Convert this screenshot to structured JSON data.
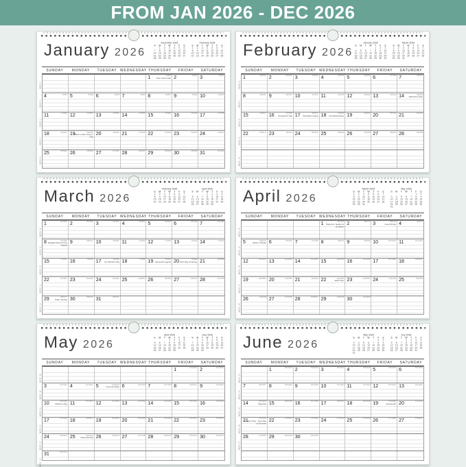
{
  "banner": {
    "text": "FROM JAN 2026 - DEC 2026",
    "bg_color": "#68a396",
    "text_color": "#ffffff"
  },
  "page_bg_color": "#e9efec",
  "weekday_headers": [
    "SUNDAY",
    "MONDAY",
    "TUESDAY",
    "WEDNESDAY",
    "THURSDAY",
    "FRIDAY",
    "SATURDAY"
  ],
  "mini_weekday_letters": [
    "S",
    "M",
    "T",
    "W",
    "T",
    "F",
    "S"
  ],
  "day_cell_corner_format": "day_of_year/days_remaining",
  "days_in_year": 365,
  "week_label_prefix": "WEEK",
  "months": [
    {
      "name": "January",
      "year": "2026",
      "first_weekday": 4,
      "days": 31,
      "start_day_of_year": 1,
      "first_week": 1,
      "mini_prev": {
        "label": "December 2025",
        "first_weekday": 1,
        "days": 31
      },
      "mini_next": {
        "label": "February 2026",
        "first_weekday": 0,
        "days": 28
      },
      "holidays": {
        "1": "New Year's Day",
        "19": "Martin Luther King Jr. Day"
      }
    },
    {
      "name": "February",
      "year": "2026",
      "first_weekday": 0,
      "days": 28,
      "start_day_of_year": 32,
      "first_week": 6,
      "min_rows": 5,
      "mini_prev": {
        "label": "January 2026",
        "first_weekday": 4,
        "days": 31
      },
      "mini_next": {
        "label": "March 2026",
        "first_weekday": 0,
        "days": 31
      },
      "holidays": {
        "14": "Valentine's Day",
        "16": "Presidents' Day",
        "17": "Ramadan begins",
        "18": "Ash Wednesday"
      }
    },
    {
      "name": "March",
      "year": "2026",
      "first_weekday": 0,
      "days": 31,
      "start_day_of_year": 60,
      "first_week": 10,
      "mini_prev": {
        "label": "February 2026",
        "first_weekday": 0,
        "days": 28
      },
      "mini_next": {
        "label": "April 2026",
        "first_weekday": 3,
        "days": 30
      },
      "holidays": {
        "8": "Daylight Saving Time begins",
        "17": "St. Patrick's Day",
        "19": "Eid al-Fitr begins",
        "20": "First Day of Spring",
        "29": "Palm Sunday"
      }
    },
    {
      "name": "April",
      "year": "2026",
      "first_weekday": 3,
      "days": 30,
      "start_day_of_year": 91,
      "first_week": 14,
      "mini_prev": {
        "label": "March 2026",
        "first_weekday": 0,
        "days": 31
      },
      "mini_next": {
        "label": "May 2026",
        "first_weekday": 5,
        "days": 31
      },
      "holidays": {
        "1": "Passover, begins at sundown",
        "3": "Good Friday",
        "5": "Easter Sunday",
        "22": "Earth Day"
      }
    },
    {
      "name": "May",
      "year": "2026",
      "first_weekday": 5,
      "days": 31,
      "start_day_of_year": 121,
      "first_week": 18,
      "half_last_row": true,
      "mini_prev": {
        "label": "April 2026",
        "first_weekday": 3,
        "days": 30
      },
      "mini_next": {
        "label": "June 2026",
        "first_weekday": 1,
        "days": 30
      },
      "holidays": {
        "5": "Cinco de Mayo",
        "10": "Mother's Day",
        "25": "Memorial Day"
      }
    },
    {
      "name": "June",
      "year": "2026",
      "first_weekday": 1,
      "days": 30,
      "start_day_of_year": 152,
      "first_week": 23,
      "trailing_blank_half_row": true,
      "mini_prev": {
        "label": "May 2026",
        "first_weekday": 5,
        "days": 31
      },
      "mini_next": {
        "label": "July 2026",
        "first_weekday": 3,
        "days": 31
      },
      "holidays": {
        "14": "Flag Day",
        "19": "Juneteenth",
        "21": "Father's Day · First Day of Summer"
      }
    }
  ]
}
